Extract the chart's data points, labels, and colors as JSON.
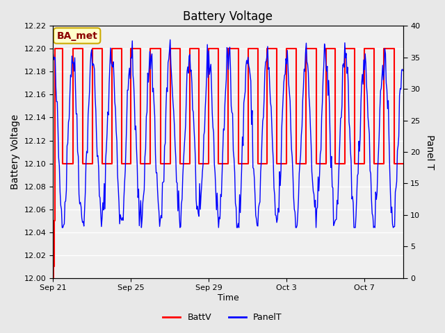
{
  "title": "Battery Voltage",
  "xlabel": "Time",
  "ylabel_left": "Battery Voltage",
  "ylabel_right": "Panel T",
  "annotation_text": "BA_met",
  "annotation_bg": "#ffffcc",
  "annotation_border": "#ccaa00",
  "annotation_text_color": "#8B0000",
  "left_ylim": [
    12.0,
    12.22
  ],
  "right_ylim": [
    0,
    40
  ],
  "left_yticks": [
    12.0,
    12.02,
    12.04,
    12.06,
    12.08,
    12.1,
    12.12,
    12.14,
    12.16,
    12.18,
    12.2,
    12.22
  ],
  "right_yticks": [
    0,
    5,
    10,
    15,
    20,
    25,
    30,
    35,
    40
  ],
  "bg_color": "#e8e8e8",
  "plot_bg_color": "#f0f0f0",
  "grid_color": "#ffffff",
  "batt_color": "#ff0000",
  "panel_color": "#0000ff",
  "legend_batt": "BattV",
  "legend_panel": "PanelT",
  "x_tick_labels": [
    "Sep 21",
    "Sep 25",
    "Sep 29",
    "Oct 3",
    "Oct 7"
  ],
  "x_tick_positions": [
    0,
    4,
    8,
    12,
    16
  ],
  "total_days": 18
}
